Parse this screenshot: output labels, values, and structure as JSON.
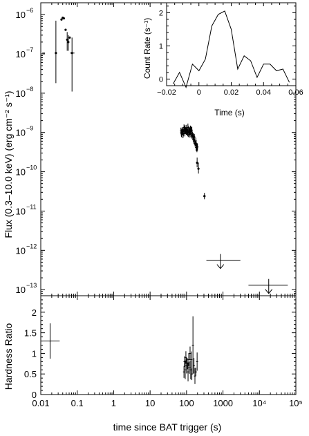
{
  "chart_data": [
    {
      "id": "flux",
      "type": "scatter",
      "xlabel": "time since BAT trigger (s)",
      "ylabel": "Flux (0.3–10.0 keV) (erg cm⁻² s⁻¹)",
      "xscale": "log",
      "yscale": "log",
      "xlim": [
        0.01,
        100000
      ],
      "ylim": [
        7e-14,
        2e-06
      ],
      "x_ticks": [
        0.01,
        0.1,
        1,
        10,
        100,
        1000,
        10000,
        100000
      ],
      "x_tick_labels": [
        "0.01",
        "0.1",
        "1",
        "10",
        "100",
        "1000",
        "10⁴",
        "10⁵"
      ],
      "y_ticks": [
        1e-13,
        1e-12,
        1e-11,
        1e-10,
        1e-09,
        1e-08,
        1e-07,
        1e-06
      ],
      "y_tick_labels": [
        {
          "base": "10",
          "exp": "−13"
        },
        {
          "base": "10",
          "exp": "−12"
        },
        {
          "base": "10",
          "exp": "−11"
        },
        {
          "base": "10",
          "exp": "−10"
        },
        {
          "base": "10",
          "exp": "−9"
        },
        {
          "base": "10",
          "exp": "−8"
        },
        {
          "base": "10",
          "exp": "−7"
        },
        {
          "base": "10",
          "exp": "−6"
        }
      ],
      "points": [
        {
          "x": 0.026,
          "y": 1.05e-07,
          "xerr": [
            0.011,
            0.013
          ],
          "yerr": [
            1.8e-08,
            7e-07
          ]
        },
        {
          "x": 0.037,
          "y": 7.5e-07
        },
        {
          "x": 0.04,
          "y": 8.3e-07
        },
        {
          "x": 0.043,
          "y": 8e-07
        },
        {
          "x": 0.048,
          "y": 4.1e-07
        },
        {
          "x": 0.053,
          "y": 2.3e-07,
          "yerr": [
            1.2e-07,
            3.6e-07
          ]
        },
        {
          "x": 0.057,
          "y": 2e-07,
          "yerr": [
            1.2e-07,
            3e-07
          ]
        },
        {
          "x": 0.062,
          "y": 2.6e-07
        },
        {
          "x": 0.072,
          "y": 1.05e-07,
          "xerr": [
            0.064,
            0.084
          ],
          "yerr": [
            1.1e-08,
            2.6e-07
          ]
        },
        {
          "x": 195,
          "y": 1.7e-10,
          "yerr": [
            1.3e-10,
            2.3e-10
          ]
        },
        {
          "x": 212,
          "y": 1.2e-10,
          "yerr": [
            9e-11,
            1.7e-10
          ]
        },
        {
          "x": 310,
          "y": 2.4e-11,
          "xerr": [
            285,
            335
          ],
          "yerr": [
            2e-11,
            2.9e-11
          ]
        }
      ],
      "dense_segment": {
        "x_range": [
          70,
          200
        ],
        "y_start": 1.1e-09,
        "y_end": 3.5e-10
      },
      "upper_limits": [
        {
          "x": 850,
          "xerr": [
            350,
            3000
          ],
          "y": 5.6e-13
        },
        {
          "x": 18000,
          "xerr": [
            5000,
            60000
          ],
          "y": 1.3e-13
        }
      ]
    },
    {
      "id": "hardness",
      "type": "scatter",
      "xlabel": "time since BAT trigger (s)",
      "ylabel": "Hardness Ratio",
      "xscale": "log",
      "xlim": [
        0.01,
        100000
      ],
      "ylim": [
        0,
        2.4
      ],
      "x_ticks": [
        0.01,
        0.1,
        1,
        10,
        100,
        1000,
        10000,
        100000
      ],
      "x_tick_labels": [
        "0.01",
        "0.1",
        "1",
        "10",
        "100",
        "1000",
        "10⁴",
        "10⁵"
      ],
      "y_ticks": [
        0,
        0.5,
        1,
        1.5,
        2
      ],
      "y_tick_labels": [
        "0",
        "0.5",
        "1",
        "1.5",
        "2"
      ],
      "points": [
        {
          "x": 0.018,
          "y": 1.3,
          "xerr": [
            0.011,
            0.033
          ],
          "yerr": [
            0.87,
            1.73
          ]
        },
        {
          "x": 150,
          "y": 1.2,
          "yerr": [
            0.5,
            1.9
          ]
        },
        {
          "x": 85,
          "y": 0.55
        },
        {
          "x": 88,
          "y": 0.8
        },
        {
          "x": 92,
          "y": 0.6
        },
        {
          "x": 96,
          "y": 0.9
        },
        {
          "x": 100,
          "y": 0.7
        },
        {
          "x": 105,
          "y": 0.75
        },
        {
          "x": 110,
          "y": 0.55
        },
        {
          "x": 115,
          "y": 0.85
        },
        {
          "x": 120,
          "y": 0.65
        },
        {
          "x": 125,
          "y": 1.0
        },
        {
          "x": 130,
          "y": 0.6
        },
        {
          "x": 135,
          "y": 0.85
        },
        {
          "x": 140,
          "y": 0.5
        },
        {
          "x": 160,
          "y": 0.7
        },
        {
          "x": 170,
          "y": 0.45
        },
        {
          "x": 180,
          "y": 0.55
        },
        {
          "x": 195,
          "y": 0.8
        }
      ]
    },
    {
      "id": "inset",
      "type": "line",
      "xlabel": "Time (s)",
      "ylabel": "Count Rate (s⁻¹)",
      "xlim": [
        -0.02,
        0.06
      ],
      "ylim": [
        -0.2,
        2.3
      ],
      "x_ticks": [
        -0.02,
        0,
        0.02,
        0.04,
        0.06
      ],
      "x_tick_labels": [
        "−0.02",
        "0",
        "0.02",
        "0.04",
        "0.06"
      ],
      "y_ticks": [
        0,
        1,
        2
      ],
      "y_tick_labels": [
        "0",
        "1",
        "2"
      ],
      "x": [
        -0.016,
        -0.012,
        -0.008,
        -0.004,
        0.0,
        0.004,
        0.008,
        0.012,
        0.016,
        0.02,
        0.024,
        0.028,
        0.032,
        0.036,
        0.04,
        0.044,
        0.048,
        0.052,
        0.056
      ],
      "y": [
        -0.15,
        0.2,
        -0.25,
        0.45,
        0.25,
        0.6,
        1.6,
        1.95,
        2.05,
        1.5,
        0.3,
        0.7,
        0.55,
        0.05,
        0.45,
        0.45,
        0.25,
        0.3,
        -0.1
      ]
    }
  ]
}
